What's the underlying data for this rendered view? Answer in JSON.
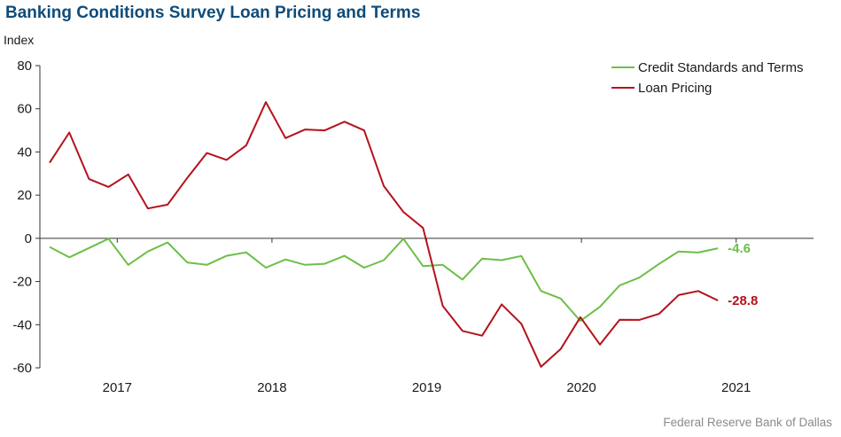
{
  "page": {
    "title": "Banking Conditions Survey Loan Pricing and Terms",
    "source": "Federal Reserve Bank of Dallas"
  },
  "chart_data": {
    "type": "line",
    "title": "Banking Conditions Survey Loan Pricing and Terms",
    "ylabel": "Index",
    "xlabel": "",
    "ylim": [
      -60,
      80
    ],
    "yticks": [
      -60,
      -40,
      -20,
      0,
      20,
      40,
      60,
      80
    ],
    "x_start": 2016.5,
    "x_end": 2021.5,
    "x_tick_years": [
      "2017",
      "2018",
      "2019",
      "2020",
      "2021"
    ],
    "grid": false,
    "legend_position": "top-right",
    "series": [
      {
        "name": "Credit Standards and Terms",
        "color": "#6bbf47",
        "end_label": "-4.6",
        "values": [
          -4.0,
          -8.8,
          -4.5,
          -0.2,
          -12.3,
          -6.1,
          -1.9,
          -11.2,
          -12.3,
          -8.1,
          -6.5,
          -13.6,
          -9.8,
          -12.3,
          -11.8,
          -8.1,
          -13.6,
          -10.1,
          -0.2,
          -12.9,
          -12.3,
          -19.1,
          -9.4,
          -10.1,
          -8.2,
          -24.4,
          -27.9,
          -38.3,
          -31.7,
          -21.8,
          -18.2,
          -11.9,
          -6.1,
          -6.6,
          -4.6
        ]
      },
      {
        "name": "Loan Pricing",
        "color": "#b5121b",
        "end_label": "-28.8",
        "values": [
          35.0,
          49.0,
          27.5,
          23.8,
          29.6,
          13.8,
          15.6,
          28.0,
          39.5,
          36.3,
          43.0,
          63.1,
          46.4,
          50.4,
          50.0,
          54.0,
          50.0,
          24.2,
          12.2,
          4.8,
          -31.3,
          -42.9,
          -45.1,
          -30.6,
          -39.6,
          -59.5,
          -51.3,
          -36.5,
          -49.2,
          -37.7,
          -37.8,
          -35.0,
          -26.3,
          -24.4,
          -28.8
        ]
      }
    ]
  }
}
